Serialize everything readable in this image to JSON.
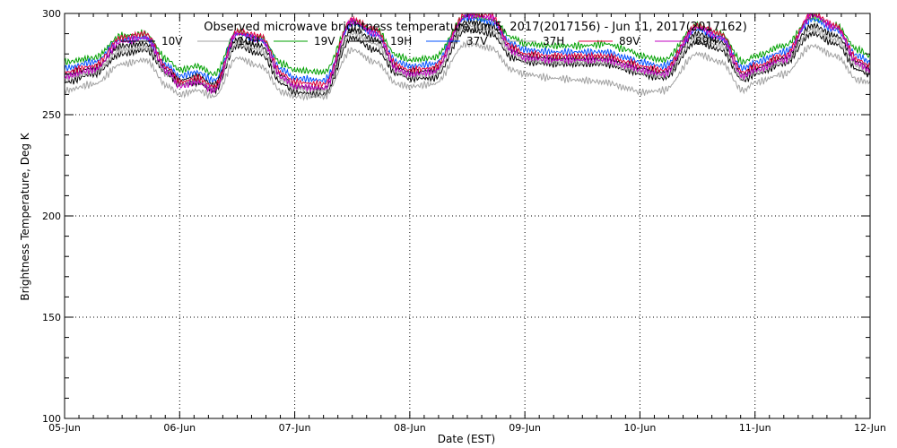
{
  "chart_data": {
    "type": "line",
    "title": "Observed microwave brightness temperature Jun 5, 2017(2017156) - Jun 11, 2017(2017162)",
    "xlabel": "Date (EST)",
    "ylabel": "Brightness Temperature, Deg K",
    "xlim": [
      0,
      7
    ],
    "ylim": [
      100,
      300
    ],
    "x_tick_labels": [
      "05-Jun",
      "06-Jun",
      "07-Jun",
      "08-Jun",
      "09-Jun",
      "10-Jun",
      "11-Jun",
      "12-Jun"
    ],
    "y_ticks": [
      100,
      150,
      200,
      250,
      300
    ],
    "grid": true,
    "legend_position": "top",
    "x_units": "days since 05-Jun 2017 00:00 EST",
    "series": [
      {
        "name": "10V",
        "color": "#000000",
        "x": [
          0,
          0.25,
          0.5,
          0.7,
          0.9,
          1.0,
          1.15,
          1.3,
          1.5,
          1.7,
          1.9,
          2.0,
          2.25,
          2.5,
          2.7,
          2.9,
          3.0,
          3.2,
          3.5,
          3.7,
          3.9,
          4.0,
          4.25,
          4.5,
          4.7,
          4.9,
          5.0,
          5.2,
          5.5,
          5.7,
          5.9,
          6.0,
          6.25,
          6.5,
          6.7,
          6.9,
          7.0
        ],
        "y": [
          266,
          270,
          280,
          282,
          270,
          265,
          266,
          262,
          284,
          280,
          265,
          261,
          260,
          288,
          282,
          270,
          268,
          268,
          292,
          290,
          278,
          276,
          275,
          275,
          275,
          272,
          270,
          268,
          286,
          282,
          267,
          270,
          275,
          290,
          285,
          272,
          270
        ]
      },
      {
        "name": "10H",
        "color": "#a0a0a0",
        "x": [
          0,
          0.25,
          0.5,
          0.7,
          0.9,
          1.0,
          1.15,
          1.3,
          1.5,
          1.7,
          1.9,
          2.0,
          2.25,
          2.5,
          2.7,
          2.9,
          3.0,
          3.2,
          3.5,
          3.7,
          3.9,
          4.0,
          4.25,
          4.5,
          4.7,
          4.9,
          5.0,
          5.2,
          5.5,
          5.7,
          5.9,
          6.0,
          6.25,
          6.5,
          6.7,
          6.9,
          7.0
        ],
        "y": [
          262,
          265,
          275,
          277,
          264,
          260,
          262,
          259,
          278,
          274,
          261,
          259,
          259,
          282,
          276,
          265,
          264,
          265,
          285,
          283,
          272,
          270,
          268,
          267,
          266,
          263,
          261,
          262,
          280,
          276,
          262,
          266,
          270,
          284,
          279,
          267,
          266
        ]
      },
      {
        "name": "19V",
        "color": "#00a000",
        "x": [
          0,
          0.25,
          0.5,
          0.7,
          0.9,
          1.0,
          1.15,
          1.3,
          1.5,
          1.7,
          1.9,
          2.0,
          2.25,
          2.5,
          2.7,
          2.9,
          3.0,
          3.2,
          3.5,
          3.7,
          3.9,
          4.0,
          4.25,
          4.5,
          4.7,
          4.9,
          5.0,
          5.2,
          5.5,
          5.7,
          5.9,
          6.0,
          6.25,
          6.5,
          6.7,
          6.9,
          7.0
        ],
        "y": [
          276,
          278,
          289,
          290,
          277,
          272,
          274,
          270,
          291,
          288,
          275,
          272,
          271,
          296,
          292,
          279,
          277,
          278,
          299,
          297,
          288,
          285,
          284,
          284,
          285,
          282,
          279,
          277,
          294,
          290,
          276,
          279,
          284,
          298,
          294,
          282,
          279
        ]
      },
      {
        "name": "19H",
        "color": "#000000",
        "x": [
          0,
          0.25,
          0.5,
          0.7,
          0.9,
          1.0,
          1.15,
          1.3,
          1.5,
          1.7,
          1.9,
          2.0,
          2.25,
          2.5,
          2.7,
          2.9,
          3.0,
          3.2,
          3.5,
          3.7,
          3.9,
          4.0,
          4.25,
          4.5,
          4.7,
          4.9,
          5.0,
          5.2,
          5.5,
          5.7,
          5.9,
          6.0,
          6.25,
          6.5,
          6.7,
          6.9,
          7.0
        ],
        "y": [
          270,
          273,
          284,
          285,
          272,
          267,
          269,
          265,
          287,
          284,
          269,
          264,
          263,
          292,
          287,
          273,
          271,
          272,
          296,
          294,
          282,
          279,
          278,
          278,
          278,
          275,
          273,
          271,
          290,
          286,
          270,
          273,
          278,
          294,
          289,
          276,
          273
        ]
      },
      {
        "name": "37V",
        "color": "#0050ff",
        "x": [
          0,
          0.25,
          0.5,
          0.7,
          0.9,
          1.0,
          1.15,
          1.3,
          1.5,
          1.7,
          1.9,
          2.0,
          2.25,
          2.5,
          2.7,
          2.9,
          3.0,
          3.2,
          3.5,
          3.7,
          3.9,
          4.0,
          4.25,
          4.5,
          4.7,
          4.9,
          5.0,
          5.2,
          5.5,
          5.7,
          5.9,
          6.0,
          6.25,
          6.5,
          6.7,
          6.9,
          7.0
        ],
        "y": [
          273,
          276,
          287,
          288,
          274,
          269,
          271,
          267,
          290,
          287,
          272,
          268,
          267,
          295,
          290,
          276,
          274,
          275,
          298,
          296,
          285,
          282,
          281,
          281,
          281,
          278,
          276,
          274,
          292,
          288,
          273,
          276,
          281,
          297,
          292,
          279,
          276
        ]
      },
      {
        "name": "37H",
        "color": "#a0a0a0",
        "x": [
          0,
          0.25,
          0.5,
          0.7,
          0.9,
          1.0,
          1.15,
          1.3,
          1.5,
          1.7,
          1.9,
          2.0,
          2.25,
          2.5,
          2.7,
          2.9,
          3.0,
          3.2,
          3.5,
          3.7,
          3.9,
          4.0,
          4.25,
          4.5,
          4.7,
          4.9,
          5.0,
          5.2,
          5.5,
          5.7,
          5.9,
          6.0,
          6.25,
          6.5,
          6.7,
          6.9,
          7.0
        ],
        "y": [
          268,
          271,
          282,
          283,
          270,
          265,
          267,
          263,
          285,
          282,
          267,
          263,
          262,
          290,
          285,
          271,
          269,
          270,
          294,
          292,
          280,
          277,
          276,
          276,
          276,
          273,
          271,
          269,
          288,
          284,
          268,
          271,
          276,
          292,
          287,
          274,
          271
        ]
      },
      {
        "name": "89V",
        "color": "#e0003c",
        "x": [
          0,
          0.25,
          0.5,
          0.7,
          0.9,
          1.0,
          1.15,
          1.3,
          1.5,
          1.7,
          1.9,
          2.0,
          2.25,
          2.5,
          2.7,
          2.9,
          3.0,
          3.2,
          3.5,
          3.7,
          3.9,
          4.0,
          4.25,
          4.5,
          4.7,
          4.9,
          5.0,
          5.2,
          5.5,
          5.7,
          5.9,
          6.0,
          6.25,
          6.5,
          6.7,
          6.9,
          7.0
        ],
        "y": [
          271,
          274,
          288,
          290,
          273,
          266,
          268,
          264,
          291,
          289,
          270,
          266,
          265,
          297,
          292,
          274,
          272,
          273,
          300,
          299,
          283,
          280,
          279,
          279,
          279,
          276,
          274,
          272,
          294,
          290,
          271,
          274,
          279,
          300,
          294,
          277,
          274
        ]
      },
      {
        "name": "89H",
        "color": "#c000c0",
        "x": [
          0,
          0.25,
          0.5,
          0.7,
          0.9,
          1.0,
          1.15,
          1.3,
          1.5,
          1.7,
          1.9,
          2.0,
          2.25,
          2.5,
          2.7,
          2.9,
          3.0,
          3.2,
          3.5,
          3.7,
          3.9,
          4.0,
          4.25,
          4.5,
          4.7,
          4.9,
          5.0,
          5.2,
          5.5,
          5.7,
          5.9,
          6.0,
          6.25,
          6.5,
          6.7,
          6.9,
          7.0
        ],
        "y": [
          269,
          272,
          286,
          288,
          271,
          264,
          266,
          262,
          290,
          287,
          268,
          264,
          263,
          296,
          290,
          272,
          270,
          271,
          299,
          298,
          281,
          278,
          277,
          277,
          277,
          274,
          272,
          270,
          293,
          288,
          269,
          272,
          277,
          299,
          293,
          275,
          272
        ]
      }
    ]
  }
}
